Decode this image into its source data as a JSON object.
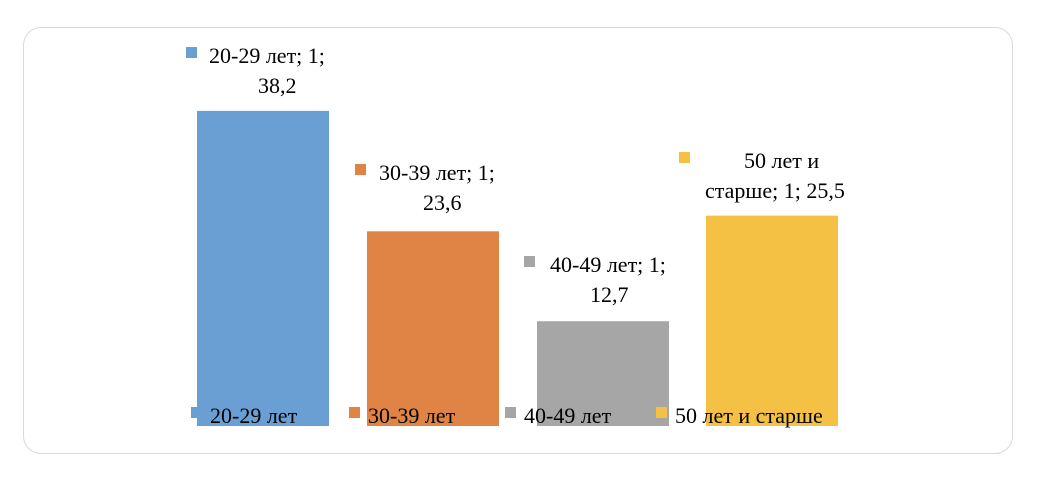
{
  "chart_data": {
    "type": "bar",
    "categories": [
      "1"
    ],
    "series": [
      {
        "name": "20-29 лет",
        "values": [
          38.2
        ],
        "color": "#6a9fd4",
        "label_lines": [
          "20-29 лет; 1;",
          "38,2"
        ]
      },
      {
        "name": "30-39 лет",
        "values": [
          23.6
        ],
        "color": "#e08446",
        "label_lines": [
          "30-39 лет; 1;",
          "23,6"
        ]
      },
      {
        "name": "40-49 лет",
        "values": [
          12.7
        ],
        "color": "#a6a6a6",
        "label_lines": [
          "40-49 лет; 1;",
          "12,7"
        ]
      },
      {
        "name": "50 лет и старше",
        "values": [
          25.5
        ],
        "color": "#f5c144",
        "label_lines": [
          "50 лет и",
          "старше; 1; 25,5"
        ]
      }
    ],
    "title": "",
    "xlabel": "",
    "ylabel": "",
    "ylim": [
      0,
      40
    ],
    "grid": false,
    "legend": "bottom"
  }
}
